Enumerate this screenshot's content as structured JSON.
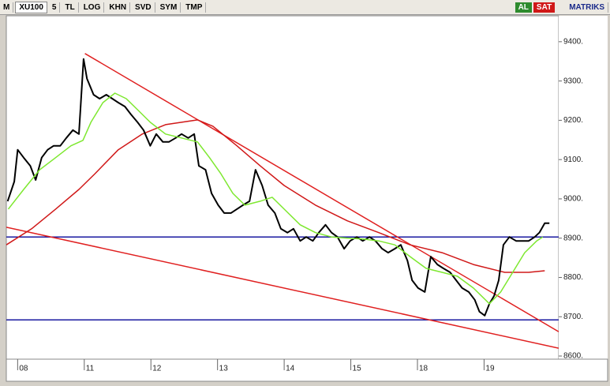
{
  "toolbar": {
    "logo": "M",
    "symbol": "XU100",
    "period": "5",
    "currency": "TL",
    "buttons": [
      "LOG",
      "KHN",
      "SVD",
      "SYM",
      "TMP"
    ],
    "buy": "AL",
    "sell": "SAT",
    "brand": "MATRIKS"
  },
  "chart_data": {
    "type": "line",
    "xlim": [
      -0.17,
      8.12
    ],
    "ylim": [
      8592,
      9466
    ],
    "xticks": [
      {
        "value": 0,
        "label": "08"
      },
      {
        "value": 1,
        "label": "11"
      },
      {
        "value": 2,
        "label": "12"
      },
      {
        "value": 3,
        "label": "13"
      },
      {
        "value": 4,
        "label": "14"
      },
      {
        "value": 5,
        "label": "15"
      },
      {
        "value": 6,
        "label": "18"
      },
      {
        "value": 7,
        "label": "19"
      }
    ],
    "yticks": [
      {
        "value": 8600,
        "label": "8600."
      },
      {
        "value": 8700,
        "label": "8700."
      },
      {
        "value": 8800,
        "label": "8800."
      },
      {
        "value": 8900,
        "label": "8900."
      },
      {
        "value": 9000,
        "label": "9000."
      },
      {
        "value": 9100,
        "label": "9100."
      },
      {
        "value": 9200,
        "label": "9200."
      },
      {
        "value": 9300,
        "label": "9300."
      },
      {
        "value": 9400,
        "label": "9400."
      }
    ],
    "series": [
      {
        "color": "#1a1aa0",
        "line_width": 1.5,
        "x": [
          -0.17,
          8.12
        ],
        "values": [
          8903,
          8903
        ]
      },
      {
        "color": "#1a1aa0",
        "line_width": 1.5,
        "x": [
          -0.17,
          8.12
        ],
        "values": [
          8692,
          8692
        ]
      },
      {
        "color": "#e02020",
        "line_width": 1.5,
        "x": [
          1.01,
          8.12
        ],
        "values": [
          9370,
          8662
        ]
      },
      {
        "color": "#e02020",
        "line_width": 1.5,
        "x": [
          -0.17,
          8.12
        ],
        "values": [
          8928,
          8620
        ]
      },
      {
        "color": "#d01818",
        "line_width": 1.5,
        "x": [
          -0.17,
          0.21,
          0.57,
          0.92,
          1.16,
          1.51,
          1.87,
          2.22,
          2.7,
          2.93,
          3.29,
          3.64,
          4.0,
          4.47,
          4.95,
          5.42,
          5.89,
          6.37,
          6.84,
          7.31,
          7.67,
          7.91
        ],
        "values": [
          8883,
          8924,
          8974,
          9024,
          9064,
          9125,
          9165,
          9189,
          9201,
          9185,
          9135,
          9084,
          9034,
          8984,
          8944,
          8914,
          8883,
          8863,
          8833,
          8813,
          8813,
          8817
        ]
      },
      {
        "color": "#000000",
        "line_width": 2,
        "x": [
          -0.15,
          -0.05,
          0,
          0.09,
          0.19,
          0.27,
          0.36,
          0.45,
          0.54,
          0.64,
          0.73,
          0.83,
          0.92,
          0.99,
          1.04,
          1.14,
          1.23,
          1.33,
          1.42,
          1.51,
          1.61,
          1.7,
          1.8,
          1.89,
          1.99,
          2.08,
          2.18,
          2.27,
          2.37,
          2.46,
          2.56,
          2.65,
          2.72,
          2.82,
          2.91,
          3.01,
          3.1,
          3.2,
          3.29,
          3.38,
          3.48,
          3.57,
          3.67,
          3.76,
          3.86,
          3.95,
          4.05,
          4.14,
          4.24,
          4.33,
          4.43,
          4.52,
          4.62,
          4.71,
          4.8,
          4.9,
          4.99,
          5.09,
          5.18,
          5.28,
          5.37,
          5.47,
          5.56,
          5.66,
          5.75,
          5.85,
          5.92,
          6.01,
          6.11,
          6.2,
          6.3,
          6.39,
          6.49,
          6.58,
          6.67,
          6.77,
          6.86,
          6.93,
          7.01,
          7.08,
          7.15,
          7.22,
          7.29,
          7.38,
          7.48,
          7.57,
          7.67,
          7.76,
          7.83,
          7.91,
          7.98
        ],
        "values": [
          8994,
          9044,
          9125,
          9105,
          9084,
          9048,
          9105,
          9125,
          9135,
          9135,
          9155,
          9175,
          9165,
          9356,
          9306,
          9265,
          9255,
          9265,
          9255,
          9245,
          9235,
          9215,
          9195,
          9175,
          9135,
          9165,
          9145,
          9145,
          9155,
          9165,
          9155,
          9165,
          9084,
          9074,
          9014,
          8984,
          8964,
          8964,
          8974,
          8984,
          8994,
          9074,
          9034,
          8984,
          8964,
          8924,
          8914,
          8924,
          8893,
          8903,
          8893,
          8914,
          8934,
          8914,
          8903,
          8873,
          8893,
          8903,
          8893,
          8903,
          8893,
          8873,
          8863,
          8873,
          8883,
          8843,
          8793,
          8773,
          8763,
          8853,
          8833,
          8823,
          8813,
          8793,
          8773,
          8763,
          8743,
          8713,
          8703,
          8733,
          8753,
          8793,
          8883,
          8903,
          8893,
          8893,
          8893,
          8903,
          8914,
          8938,
          8938
        ]
      },
      {
        "color": "#7ee830",
        "line_width": 1.5,
        "x": [
          -0.14,
          0.09,
          0.33,
          0.57,
          0.8,
          0.98,
          1.1,
          1.28,
          1.46,
          1.63,
          1.81,
          1.99,
          2.22,
          2.46,
          2.7,
          2.88,
          3.05,
          3.23,
          3.41,
          3.64,
          3.82,
          4.0,
          4.24,
          4.47,
          4.71,
          4.95,
          5.18,
          5.42,
          5.66,
          5.89,
          6.13,
          6.37,
          6.6,
          6.84,
          7.08,
          7.25,
          7.43,
          7.61,
          7.79,
          7.88
        ],
        "values": [
          8974,
          9024,
          9074,
          9105,
          9135,
          9149,
          9195,
          9245,
          9269,
          9255,
          9225,
          9195,
          9165,
          9155,
          9145,
          9105,
          9064,
          9014,
          8984,
          8994,
          9004,
          8974,
          8934,
          8914,
          8903,
          8900,
          8898,
          8893,
          8883,
          8853,
          8823,
          8813,
          8803,
          8773,
          8733,
          8763,
          8813,
          8863,
          8893,
          8903
        ]
      }
    ]
  }
}
